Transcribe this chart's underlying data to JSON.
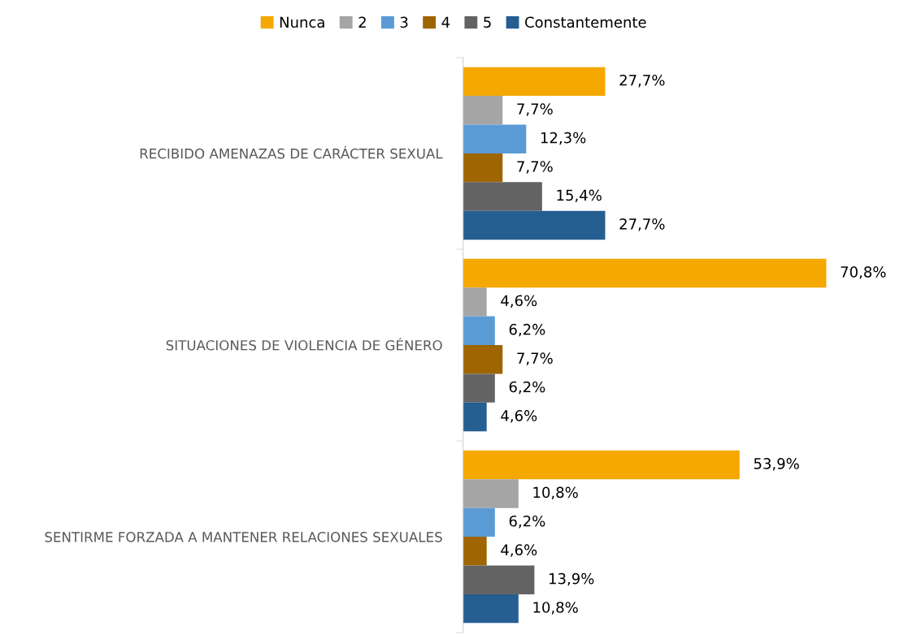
{
  "chart_data": {
    "type": "bar",
    "orientation": "horizontal",
    "categories": [
      "RECIBIDO AMENAZAS DE CARÁCTER SEXUAL",
      "SITUACIONES DE VIOLENCIA DE GÉNERO",
      "SENTIRME FORZADA A MANTENER RELACIONES SEXUALES"
    ],
    "series": [
      {
        "name": "Nunca",
        "color": "#f5a800",
        "values": [
          27.7,
          70.8,
          53.9
        ],
        "value_labels": [
          "27,7%",
          "70,8%",
          "53,9%"
        ]
      },
      {
        "name": "2",
        "color": "#a5a5a5",
        "values": [
          7.7,
          4.6,
          10.8
        ],
        "value_labels": [
          "7,7%",
          "4,6%",
          "10,8%"
        ]
      },
      {
        "name": "3",
        "color": "#5b9bd5",
        "values": [
          12.3,
          6.2,
          6.2
        ],
        "value_labels": [
          "12,3%",
          "6,2%",
          "6,2%"
        ]
      },
      {
        "name": "4",
        "color": "#9e6500",
        "values": [
          7.7,
          7.7,
          4.6
        ],
        "value_labels": [
          "7,7%",
          "7,7%",
          "4,6%"
        ]
      },
      {
        "name": "5",
        "color": "#636363",
        "values": [
          15.4,
          6.2,
          13.9
        ],
        "value_labels": [
          "15,4%",
          "6,2%",
          "13,9%"
        ]
      },
      {
        "name": "Constantemente",
        "color": "#255e91",
        "values": [
          27.7,
          4.6,
          10.8
        ],
        "value_labels": [
          "27,7%",
          "4,6%",
          "10,8%"
        ]
      }
    ],
    "legend": "top",
    "grid": false
  }
}
